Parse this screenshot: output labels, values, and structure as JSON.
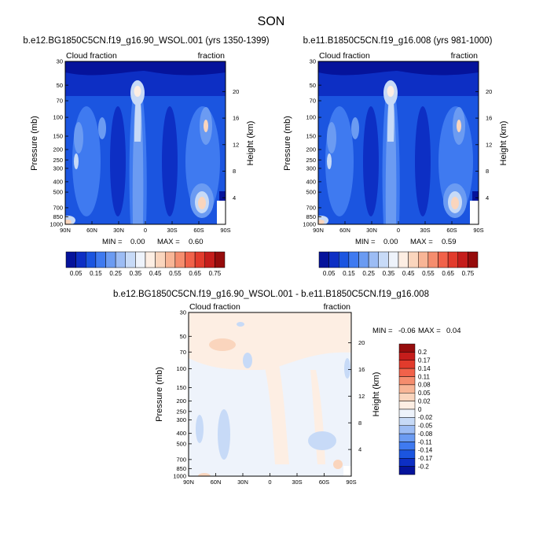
{
  "page": {
    "title": "SON"
  },
  "chart_data": [
    {
      "type": "heatmap",
      "title": "b.e12.BG1850C5CN.f19_g16.90_WSOL.001 (yrs 1350-1399)",
      "left_label": "Cloud fraction",
      "right_label": "fraction",
      "xlabel": "",
      "ylabel": "Pressure (mb)",
      "y2label": "Height (km)",
      "x_ticks": [
        "90N",
        "60N",
        "30N",
        "0",
        "30S",
        "60S",
        "90S"
      ],
      "y_ticks": [
        "30",
        "50",
        "70",
        "100",
        "150",
        "200",
        "250",
        "300",
        "400",
        "500",
        "700",
        "850",
        "1000"
      ],
      "y2_ticks": [
        "20",
        "16",
        "12",
        "8",
        "4"
      ],
      "min_label": "MIN =",
      "min_value": "0.00",
      "max_label": "MAX =",
      "max_value": "0.60",
      "min": 0.0,
      "max": 0.6
    },
    {
      "type": "heatmap",
      "title": "b.e11.B1850C5CN.f19_g16.008 (yrs 981-1000)",
      "left_label": "Cloud fraction",
      "right_label": "fraction",
      "xlabel": "",
      "ylabel": "Pressure (mb)",
      "y2label": "Height (km)",
      "x_ticks": [
        "90N",
        "60N",
        "30N",
        "0",
        "30S",
        "60S",
        "90S"
      ],
      "y_ticks": [
        "30",
        "50",
        "70",
        "100",
        "150",
        "200",
        "250",
        "300",
        "400",
        "500",
        "700",
        "850",
        "1000"
      ],
      "y2_ticks": [
        "20",
        "16",
        "12",
        "8",
        "4"
      ],
      "min_label": "MIN =",
      "min_value": "0.00",
      "max_label": "MAX =",
      "max_value": "0.59",
      "min": 0.0,
      "max": 0.59
    },
    {
      "type": "heatmap",
      "title": "b.e12.BG1850C5CN.f19_g16.90_WSOL.001 - b.e11.B1850C5CN.f19_g16.008",
      "left_label": "Cloud fraction",
      "right_label": "fraction",
      "xlabel": "",
      "ylabel": "Pressure (mb)",
      "y2label": "Height (km)",
      "x_ticks": [
        "90N",
        "60N",
        "30N",
        "0",
        "30S",
        "60S",
        "90S"
      ],
      "y_ticks": [
        "30",
        "50",
        "70",
        "100",
        "150",
        "200",
        "250",
        "300",
        "400",
        "500",
        "700",
        "850",
        "1000"
      ],
      "y2_ticks": [
        "20",
        "16",
        "12",
        "8",
        "4"
      ],
      "min_label": "MIN =",
      "min_value": "-0.06",
      "max_label": "MAX =",
      "max_value": "0.04",
      "min": -0.06,
      "max": 0.04
    }
  ],
  "colorbar_abs": {
    "labels": [
      "0.05",
      "0.15",
      "0.25",
      "0.35",
      "0.45",
      "0.55",
      "0.65",
      "0.75"
    ],
    "colors": [
      "#05139b",
      "#0d2fc4",
      "#1b55e0",
      "#3f7af0",
      "#6b9bf2",
      "#9cbcf4",
      "#c7daf7",
      "#eef3fb",
      "#fdeee3",
      "#fad5bd",
      "#f8b596",
      "#f58d6e",
      "#f1624a",
      "#e23b2c",
      "#c51d1b",
      "#960c0c"
    ]
  },
  "colorbar_diff": {
    "labels": [
      "0.2",
      "0.17",
      "0.14",
      "0.11",
      "0.08",
      "0.05",
      "0.02",
      "0",
      "-0.02",
      "-0.05",
      "-0.08",
      "-0.11",
      "-0.14",
      "-0.17",
      "-0.2"
    ],
    "colors": [
      "#960c0c",
      "#c51d1b",
      "#e23b2c",
      "#f1624a",
      "#f58d6e",
      "#f8b596",
      "#fad5bd",
      "#fdeee3",
      "#eef3fb",
      "#c7daf7",
      "#9cbcf4",
      "#6b9bf2",
      "#3f7af0",
      "#1b55e0",
      "#0d2fc4",
      "#05139b"
    ]
  }
}
